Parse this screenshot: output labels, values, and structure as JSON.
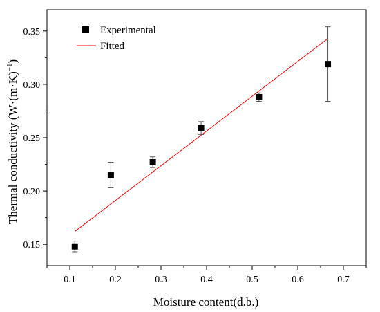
{
  "colors": {
    "experimental": "#000000",
    "fitted": "#ff0000",
    "axis": "#000000"
  },
  "chart_data": {
    "type": "scatter",
    "xlabel": "Moisture content(d.b.)",
    "ylabel": "Thermal conductivity (W·(m·K)",
    "ylabel_sup": "−1",
    "ylabel_close": ")",
    "xlim": [
      0.05,
      0.75
    ],
    "ylim": [
      0.13,
      0.37
    ],
    "xticks": [
      0.1,
      0.2,
      0.3,
      0.4,
      0.5,
      0.6,
      0.7
    ],
    "xtick_labels": [
      "0.1",
      "0.2",
      "0.3",
      "0.4",
      "0.5",
      "0.6",
      "0.7"
    ],
    "yticks": [
      0.15,
      0.2,
      0.25,
      0.3,
      0.35
    ],
    "ytick_labels": [
      "0.15",
      "0.20",
      "0.25",
      "0.30",
      "0.35"
    ],
    "grid": false,
    "legend": {
      "placement": "top-left",
      "entries": [
        "Experimental",
        "Fitted"
      ]
    },
    "series": [
      {
        "name": "Experimental",
        "marker": "square",
        "x": [
          0.111,
          0.19,
          0.282,
          0.388,
          0.515,
          0.666
        ],
        "y": [
          0.148,
          0.215,
          0.227,
          0.259,
          0.288,
          0.319
        ],
        "error": [
          0.005,
          0.012,
          0.005,
          0.006,
          0.004,
          0.035
        ]
      },
      {
        "name": "Fitted",
        "type": "line",
        "x": [
          0.111,
          0.666
        ],
        "y": [
          0.162,
          0.343
        ]
      }
    ]
  }
}
